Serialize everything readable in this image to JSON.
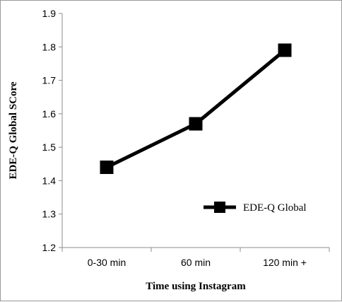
{
  "chart_data": {
    "type": "line",
    "categories": [
      "0-30 min",
      "60 min",
      "120 min +"
    ],
    "series": [
      {
        "name": "EDE-Q Global",
        "values": [
          1.44,
          1.57,
          1.79
        ],
        "color": "#000000",
        "marker": "square"
      }
    ],
    "xlabel": "Time using Instagram",
    "ylabel": "EDE-Q Global SCore",
    "ylim": [
      1.2,
      1.9
    ],
    "yticks": [
      "1.2",
      "1.3",
      "1.4",
      "1.5",
      "1.6",
      "1.7",
      "1.8",
      "1.9"
    ],
    "grid": false,
    "legend_position": "right"
  }
}
